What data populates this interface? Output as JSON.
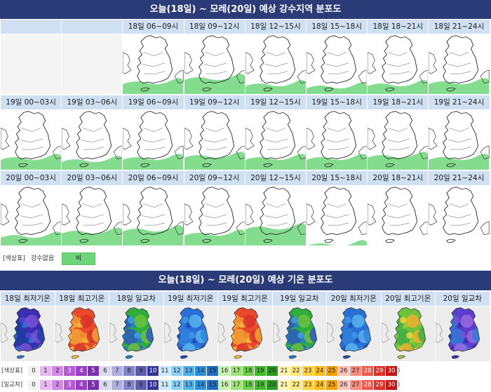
{
  "precip_section": {
    "title": "오늘(18일) ~ 모레(20일) 예상 강수지역 분포도",
    "rows": [
      {
        "slots": [
          {
            "label": "",
            "blank": true
          },
          {
            "label": "",
            "blank": true
          },
          {
            "label": "18일 06~09시",
            "rain": 0.35
          },
          {
            "label": "18일 09~12시",
            "rain": 0.45
          },
          {
            "label": "18일 12~15시",
            "rain": 0.3
          },
          {
            "label": "18일 15~18시",
            "rain": 0.25
          },
          {
            "label": "18일 18~21시",
            "rain": 0.3
          },
          {
            "label": "18일 21~24시",
            "rain": 0.35
          }
        ]
      },
      {
        "slots": [
          {
            "label": "19일 00~03시",
            "rain": 0.35
          },
          {
            "label": "19일 03~06시",
            "rain": 0.3
          },
          {
            "label": "19일 06~09시",
            "rain": 0.35
          },
          {
            "label": "19일 09~12시",
            "rain": 0.4
          },
          {
            "label": "19일 12~15시",
            "rain": 0.35
          },
          {
            "label": "19일 15~18시",
            "rain": 0.35
          },
          {
            "label": "19일 18~21시",
            "rain": 0.4
          },
          {
            "label": "19일 21~24시",
            "rain": 0.35
          }
        ]
      },
      {
        "slots": [
          {
            "label": "20일 00~03시",
            "rain": 0.3
          },
          {
            "label": "20일 03~06시",
            "rain": 0.4
          },
          {
            "label": "20일 06~09시",
            "rain": 0.45
          },
          {
            "label": "20일 09~12시",
            "rain": 0.35
          },
          {
            "label": "20일 12~15시",
            "rain": 0.5
          },
          {
            "label": "20일 15~18시",
            "rain": 0.1
          },
          {
            "label": "20일 18~21시",
            "rain": 0.0
          },
          {
            "label": "20일 21~24시",
            "rain": 0.0
          }
        ]
      }
    ],
    "legend": {
      "label": "[색상표]",
      "no_rain": "강수없음",
      "rain": "비"
    }
  },
  "temp_section": {
    "title": "오늘(18일) ~ 모레(20일) 예상 기온 분포도",
    "panels": [
      {
        "label": "18일 최저기온",
        "palette": "cold"
      },
      {
        "label": "18일 최고기온",
        "palette": "hot"
      },
      {
        "label": "18일 일교차",
        "palette": "range"
      },
      {
        "label": "19일 최저기온",
        "palette": "cold2"
      },
      {
        "label": "19일 최고기온",
        "palette": "hot"
      },
      {
        "label": "19일 일교차",
        "palette": "range"
      },
      {
        "label": "20일 최저기온",
        "palette": "cold2"
      },
      {
        "label": "20일 최고기온",
        "palette": "warm"
      },
      {
        "label": "20일 일교차",
        "palette": "range2"
      }
    ],
    "scale_rows": [
      {
        "label": "[색상표]",
        "unit": "(℃)"
      },
      {
        "label": "[일교차]",
        "unit": "(℃)"
      }
    ],
    "scale_values": [
      "0",
      "1",
      "2",
      "3",
      "4",
      "5",
      "6",
      "7",
      "8",
      "9",
      "10",
      "11",
      "12",
      "13",
      "14",
      "15",
      "16",
      "17",
      "18",
      "19",
      "20",
      "21",
      "22",
      "23",
      "24",
      "25",
      "26",
      "27",
      "28",
      "29",
      "30"
    ],
    "colors": {
      "rain": "#6ed67a",
      "banner": "#2b3b78",
      "header": "#cfe0f2"
    }
  }
}
